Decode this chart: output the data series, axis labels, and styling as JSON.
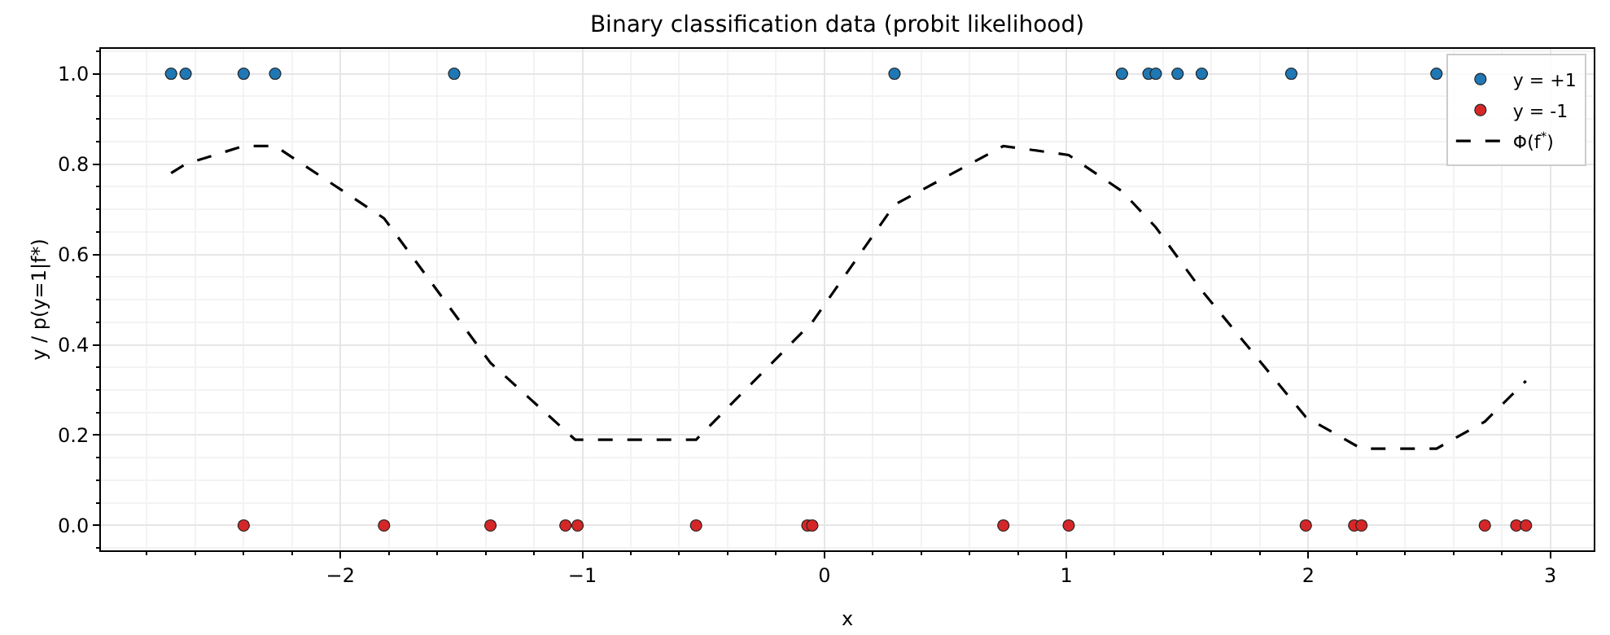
{
  "chart_data": {
    "type": "scatter",
    "title": "Binary classification data (probit likelihood)",
    "xlabel": "x",
    "ylabel": "y / p(y=1|f*)",
    "xlim": [
      -2.99,
      3.18
    ],
    "xticks": [
      {
        "value": -2,
        "label": "−2"
      },
      {
        "value": -1,
        "label": "−1"
      },
      0,
      1,
      2,
      3
    ],
    "ylim": [
      -0.055,
      1.055
    ],
    "yticks": [
      {
        "value": 0,
        "label": "0.0"
      },
      0.2,
      0.4,
      0.6,
      0.8,
      {
        "value": 1,
        "label": "1.0"
      }
    ],
    "grid": true,
    "legend": "top right",
    "marker": "circle",
    "series": [
      {
        "name": "y = +1",
        "color": "#1f77b4",
        "x": [
          -2.7,
          -2.64,
          -2.4,
          -2.27,
          -1.53,
          0.29,
          1.23,
          1.34,
          1.37,
          1.46,
          1.56,
          1.93,
          2.53
        ],
        "values": [
          1,
          1,
          1,
          1,
          1,
          1,
          1,
          1,
          1,
          1,
          1,
          1,
          1
        ]
      },
      {
        "name": "y = -1",
        "color": "#d62728",
        "x": [
          -2.4,
          -1.82,
          -1.38,
          -1.07,
          -1.02,
          -0.53,
          -0.07,
          -0.05,
          0.74,
          1.01,
          1.99,
          2.19,
          2.22,
          2.73,
          2.86,
          2.9
        ],
        "values": [
          0,
          0,
          0,
          0,
          0,
          0,
          0,
          0,
          0,
          0,
          0,
          0,
          0,
          0,
          0,
          0
        ]
      },
      {
        "name": "Φ(f$^{*}$)",
        "type": "line",
        "line_style": "dashed",
        "marker": "none",
        "color": "#000000",
        "x": [
          -2.7,
          -2.64,
          -2.4,
          -2.27,
          -1.82,
          -1.38,
          -1.03,
          -0.53,
          -0.05,
          0.29,
          0.74,
          1.01,
          1.23,
          1.37,
          1.56,
          1.99,
          2.22,
          2.53,
          2.73,
          2.9
        ],
        "values": [
          0.78,
          0.8,
          0.84,
          0.84,
          0.68,
          0.36,
          0.19,
          0.19,
          0.45,
          0.71,
          0.84,
          0.82,
          0.74,
          0.66,
          0.52,
          0.24,
          0.17,
          0.17,
          0.23,
          0.32
        ]
      }
    ]
  }
}
